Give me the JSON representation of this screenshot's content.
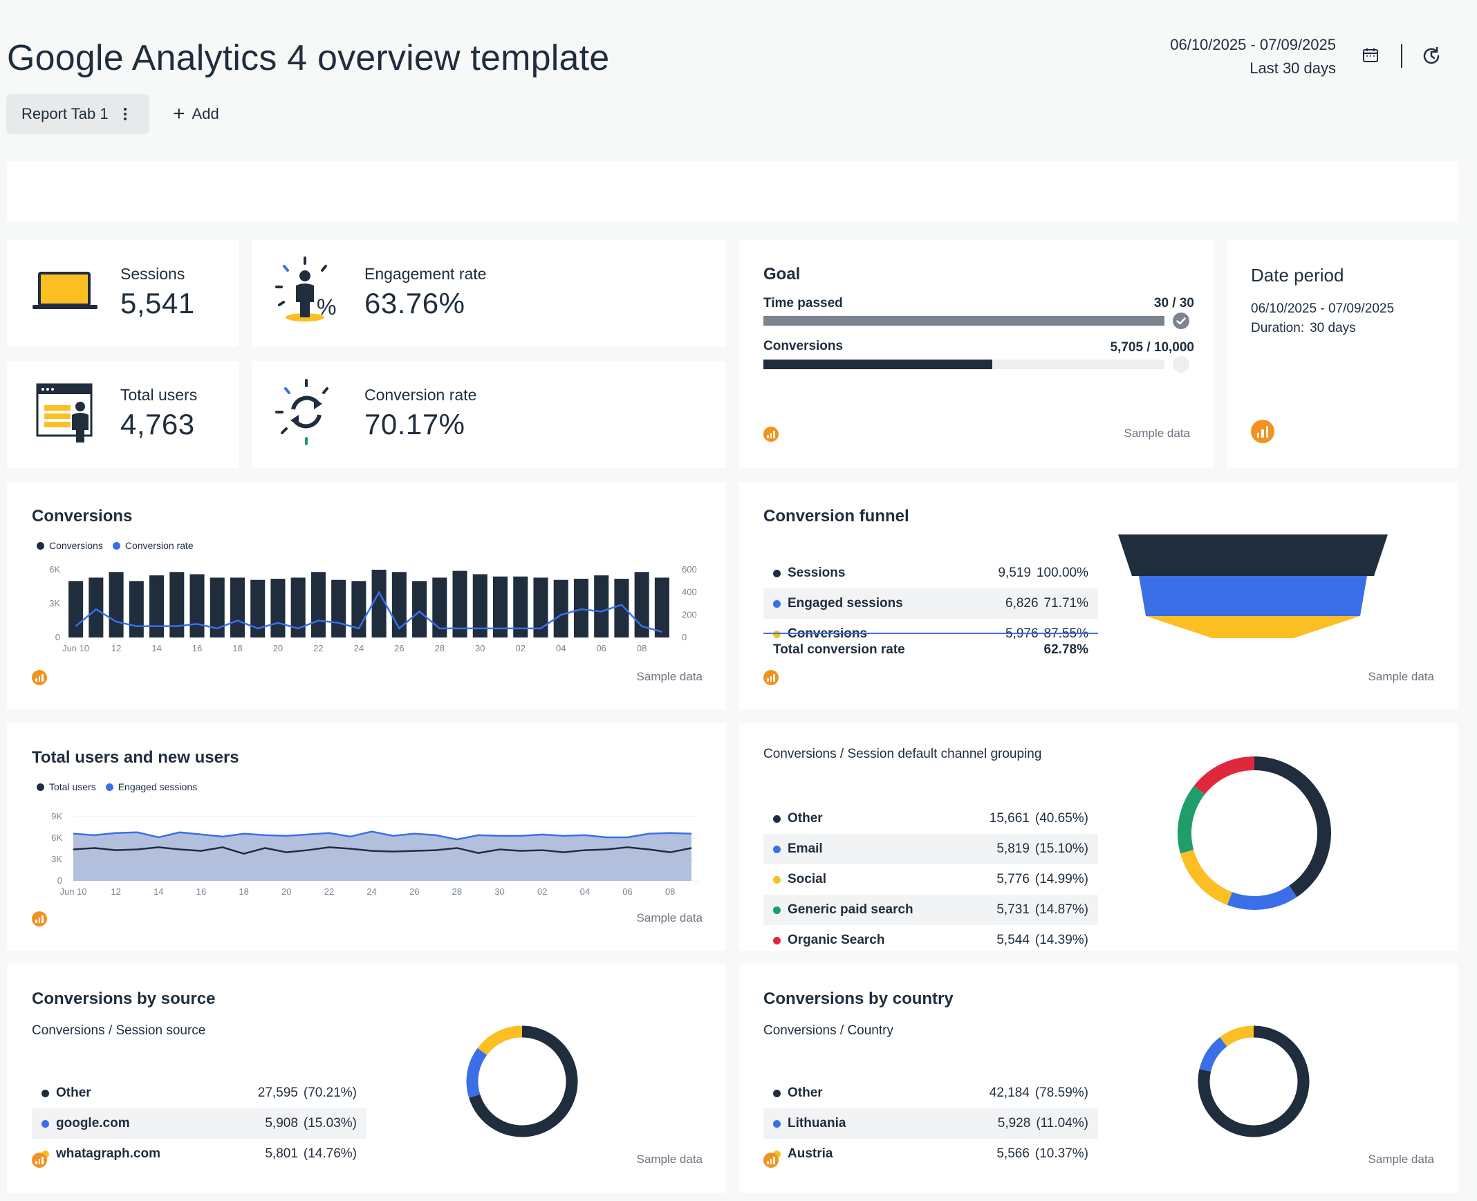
{
  "header": {
    "title": "Google Analytics 4 overview template",
    "date_range": "06/10/2025 - 07/09/2025",
    "period_label": "Last 30 days"
  },
  "tabs": {
    "tab1_label": "Report Tab 1",
    "add_label": "Add"
  },
  "kpis": {
    "sessions": {
      "label": "Sessions",
      "value": "5,541",
      "icon": "laptop-icon"
    },
    "engagement": {
      "label": "Engagement rate",
      "value": "63.76%",
      "icon": "person-percent-icon"
    },
    "total_users": {
      "label": "Total users",
      "value": "4,763",
      "icon": "browser-user-icon"
    },
    "conversion_rate": {
      "label": "Conversion rate",
      "value": "70.17%",
      "icon": "refresh-cycle-icon"
    }
  },
  "goal": {
    "title": "Goal",
    "time_label": "Time passed",
    "time_value": "30 / 30",
    "time_fraction": 1.0,
    "conv_label": "Conversions",
    "conv_value": "5,705 / 10,000",
    "conv_fraction": 0.5705,
    "sample": "Sample data"
  },
  "date_period": {
    "title": "Date period",
    "range": "06/10/2025 - 07/09/2025",
    "duration_label": "Duration:",
    "duration_value": "30 days"
  },
  "conversions_chart": {
    "title": "Conversions",
    "legend_a": "Conversions",
    "legend_b": "Conversion rate",
    "sample": "Sample data"
  },
  "users_chart": {
    "title": "Total users and new users",
    "legend_a": "Total users",
    "legend_b": "Engaged sessions",
    "sample": "Sample data"
  },
  "funnel": {
    "title": "Conversion funnel",
    "rows": [
      {
        "name": "Sessions",
        "value": "9,519",
        "pct": "100.00%"
      },
      {
        "name": "Engaged sessions",
        "value": "6,826",
        "pct": "71.71%"
      },
      {
        "name": "Conversions",
        "value": "5,976",
        "pct": "87.55%"
      }
    ],
    "total_label": "Total conversion rate",
    "total_value": "62.78%",
    "sample": "Sample data"
  },
  "channel": {
    "title": "Conversions / Session default channel grouping",
    "rows": [
      {
        "name": "Other",
        "value": "15,661",
        "pct": "(40.65%)"
      },
      {
        "name": "Email",
        "value": "5,819",
        "pct": "(15.10%)"
      },
      {
        "name": "Social",
        "value": "5,776",
        "pct": "(14.99%)"
      },
      {
        "name": "Generic paid search",
        "value": "5,731",
        "pct": "(14.87%)"
      },
      {
        "name": "Organic Search",
        "value": "5,544",
        "pct": "(14.39%)"
      }
    ]
  },
  "by_source": {
    "title": "Conversions by source",
    "subtitle": "Conversions / Session source",
    "rows": [
      {
        "name": "Other",
        "value": "27,595",
        "pct": "(70.21%)"
      },
      {
        "name": "google.com",
        "value": "5,908",
        "pct": "(15.03%)"
      },
      {
        "name": "whatagraph.com",
        "value": "5,801",
        "pct": "(14.76%)"
      }
    ],
    "sample": "Sample data"
  },
  "by_country": {
    "title": "Conversions by country",
    "subtitle": "Conversions / Country",
    "rows": [
      {
        "name": "Other",
        "value": "42,184",
        "pct": "(78.59%)"
      },
      {
        "name": "Lithuania",
        "value": "5,928",
        "pct": "(11.04%)"
      },
      {
        "name": "Austria",
        "value": "5,566",
        "pct": "(10.37%)"
      }
    ],
    "sample": "Sample data"
  },
  "colors": {
    "navy": "#1f2d3d",
    "blue": "#3b6fe8",
    "yellow": "#fbbf24",
    "green": "#1f9d6b",
    "red": "#e0283c",
    "gray_bar": "#7b8490"
  },
  "chart_data": [
    {
      "type": "bar",
      "title": "Conversions",
      "x": [
        "Jun 10",
        "11",
        "12",
        "13",
        "14",
        "15",
        "16",
        "17",
        "18",
        "19",
        "20",
        "21",
        "22",
        "23",
        "24",
        "25",
        "26",
        "27",
        "28",
        "29",
        "30",
        "01",
        "02",
        "03",
        "04",
        "05",
        "06",
        "07",
        "08",
        "09"
      ],
      "tick_labels": [
        "Jun 10",
        "12",
        "14",
        "16",
        "18",
        "20",
        "22",
        "24",
        "26",
        "28",
        "30",
        "02",
        "04",
        "06",
        "08"
      ],
      "series": [
        {
          "name": "Conversions",
          "axis": "left",
          "values": [
            5000,
            5300,
            5800,
            5000,
            5500,
            5800,
            5600,
            5300,
            5300,
            5100,
            5200,
            5300,
            5800,
            5100,
            5000,
            6000,
            5800,
            5000,
            5300,
            5900,
            5600,
            5400,
            5400,
            5300,
            5100,
            5200,
            5500,
            5200,
            5800,
            5300
          ]
        },
        {
          "name": "Conversion rate",
          "axis": "right",
          "values": [
            100,
            250,
            140,
            100,
            100,
            100,
            120,
            80,
            150,
            80,
            130,
            80,
            150,
            130,
            80,
            400,
            80,
            230,
            80,
            80,
            80,
            80,
            80,
            80,
            200,
            250,
            230,
            290,
            100,
            50
          ]
        }
      ],
      "ylim_left": [
        0,
        6000
      ],
      "yticks_left": [
        "0",
        "3K",
        "6K"
      ],
      "ylim_right": [
        0,
        600
      ],
      "yticks_right": [
        "0",
        "200",
        "400",
        "600"
      ]
    },
    {
      "type": "area",
      "title": "Total users and new users",
      "x": [
        "Jun 10",
        "11",
        "12",
        "13",
        "14",
        "15",
        "16",
        "17",
        "18",
        "19",
        "20",
        "21",
        "22",
        "23",
        "24",
        "25",
        "26",
        "27",
        "28",
        "29",
        "30",
        "01",
        "02",
        "03",
        "04",
        "05",
        "06",
        "07",
        "08",
        "09"
      ],
      "tick_labels": [
        "Jun 10",
        "12",
        "14",
        "16",
        "18",
        "20",
        "22",
        "24",
        "26",
        "28",
        "30",
        "02",
        "04",
        "06",
        "08"
      ],
      "series": [
        {
          "name": "Total users",
          "values": [
            4400,
            4600,
            4300,
            4400,
            4700,
            4400,
            4200,
            4700,
            3800,
            4600,
            4000,
            4300,
            4700,
            4500,
            4200,
            4100,
            4200,
            4300,
            4600,
            3900,
            4400,
            4200,
            4300,
            4000,
            4300,
            4400,
            4700,
            4400,
            4000,
            4600
          ]
        },
        {
          "name": "Engaged sessions",
          "values": [
            6600,
            6400,
            6700,
            6800,
            6100,
            6800,
            6500,
            6200,
            6600,
            6400,
            6300,
            6500,
            6700,
            6200,
            6900,
            6300,
            6600,
            6400,
            5800,
            6400,
            6300,
            6300,
            6500,
            6300,
            6400,
            6100,
            6100,
            6600,
            6700,
            6600
          ]
        }
      ],
      "ylim": [
        0,
        9000
      ],
      "yticks": [
        "0",
        "3K",
        "6K",
        "9K"
      ]
    },
    {
      "type": "pie",
      "title": "Conversions / Session default channel grouping",
      "categories": [
        "Other",
        "Email",
        "Social",
        "Generic paid search",
        "Organic Search"
      ],
      "values": [
        40.65,
        15.1,
        14.99,
        14.87,
        14.39
      ]
    },
    {
      "type": "pie",
      "title": "Conversions / Session source",
      "categories": [
        "Other",
        "google.com",
        "whatagraph.com"
      ],
      "values": [
        70.21,
        15.03,
        14.76
      ]
    },
    {
      "type": "pie",
      "title": "Conversions / Country",
      "categories": [
        "Other",
        "Lithuania",
        "Austria"
      ],
      "values": [
        78.59,
        11.04,
        10.37
      ]
    },
    {
      "type": "bar",
      "title": "Conversion funnel",
      "categories": [
        "Sessions",
        "Engaged sessions",
        "Conversions"
      ],
      "values": [
        9519,
        6826,
        5976
      ]
    }
  ]
}
